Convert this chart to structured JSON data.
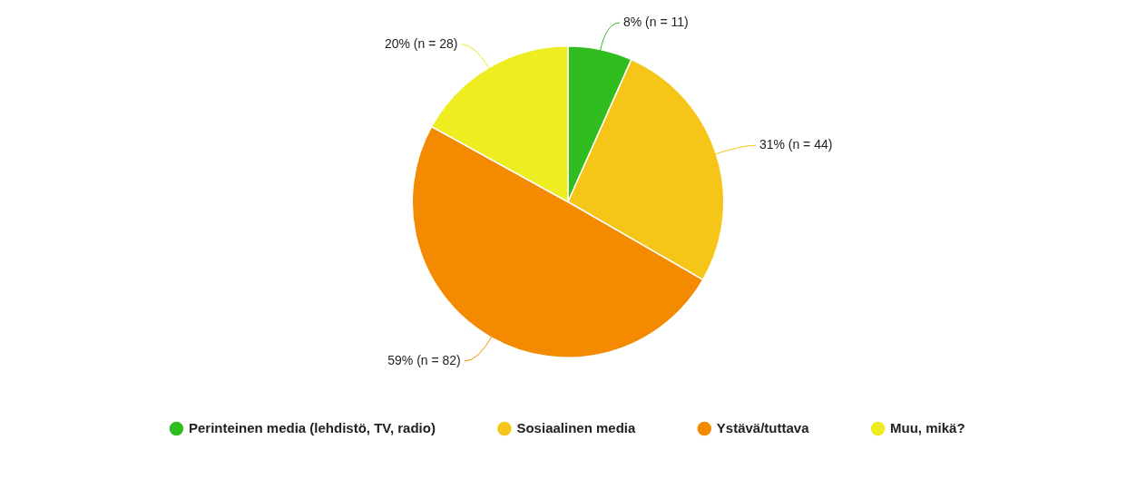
{
  "chart_data": {
    "type": "pie",
    "categories": [
      "Perinteinen media (lehdistö, TV, radio)",
      "Sosiaalinen media",
      "Ystävä/tuttava",
      "Muu, mikä?"
    ],
    "values": [
      11,
      44,
      82,
      28
    ],
    "colors": [
      "#2fbd1f",
      "#f5c518",
      "#f48a00",
      "#eded20"
    ],
    "value_labels": [
      "8% (n = 11)",
      "31% (n = 44)",
      "59% (n = 82)",
      "20% (n = 28)"
    ],
    "legend": "bottom"
  }
}
